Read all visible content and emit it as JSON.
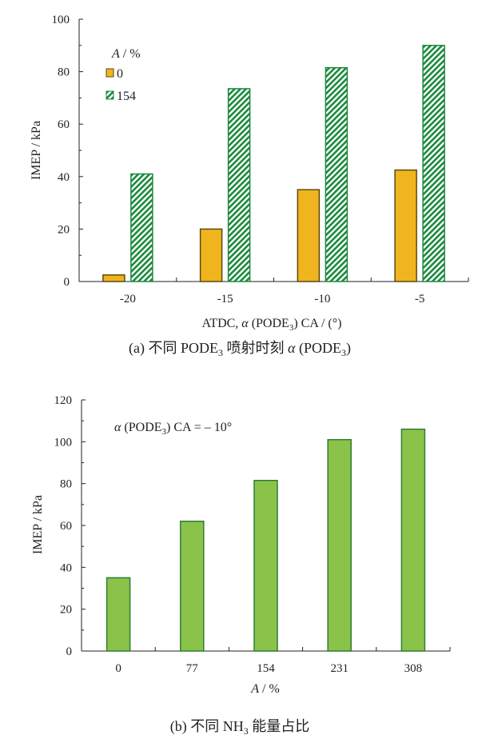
{
  "chart_data": [
    {
      "type": "bar",
      "caption": {
        "prefix": "(a)  不同 PODE",
        "sub": "3",
        "mid": " 喷射时刻 ",
        "alpha": "α",
        "post": " (PODE",
        "sub2": "3",
        "end": ")"
      },
      "xlabel": {
        "prefix": "ATDC, ",
        "alpha": "α",
        "mid": " (PODE",
        "sub": "3",
        "post": ")  CA / (°)"
      },
      "ylabel": "IMEP / kPa",
      "categories": [
        "-20",
        "-15",
        "-10",
        "-5"
      ],
      "ylim": [
        0,
        100
      ],
      "yticks": [
        "0",
        "20",
        "40",
        "60",
        "80",
        "100"
      ],
      "legend_title": {
        "var": "A",
        "unit": " / %"
      },
      "legend_placement": "top-left",
      "series": [
        {
          "name": "0",
          "values": [
            2.5,
            20,
            35,
            42.5
          ],
          "color": "#f0b51e",
          "edge": "#5a4a10",
          "pattern": "solid"
        },
        {
          "name": "154",
          "values": [
            41,
            73.5,
            81.5,
            90
          ],
          "color": "#1b8a3c",
          "edge": "#1b8a3c",
          "pattern": "hatch"
        }
      ]
    },
    {
      "type": "bar",
      "caption": {
        "prefix": "(b)  不同 NH",
        "sub": "3",
        "post": " 能量占比"
      },
      "xlabel": {
        "var": "A",
        "unit": " / %"
      },
      "ylabel": "IMEP / kPa",
      "categories": [
        "0",
        "77",
        "154",
        "231",
        "308"
      ],
      "ylim": [
        0,
        120
      ],
      "yticks": [
        "0",
        "20",
        "40",
        "60",
        "80",
        "100",
        "120"
      ],
      "annotation": {
        "alpha": "α",
        "mid": " (PODE",
        "sub": "3",
        "post": ")  CA = – 10°"
      },
      "series": [
        {
          "values": [
            35,
            62,
            81.5,
            101,
            106
          ],
          "color": "#8bc34a",
          "edge": "#2e7d32"
        }
      ]
    }
  ]
}
